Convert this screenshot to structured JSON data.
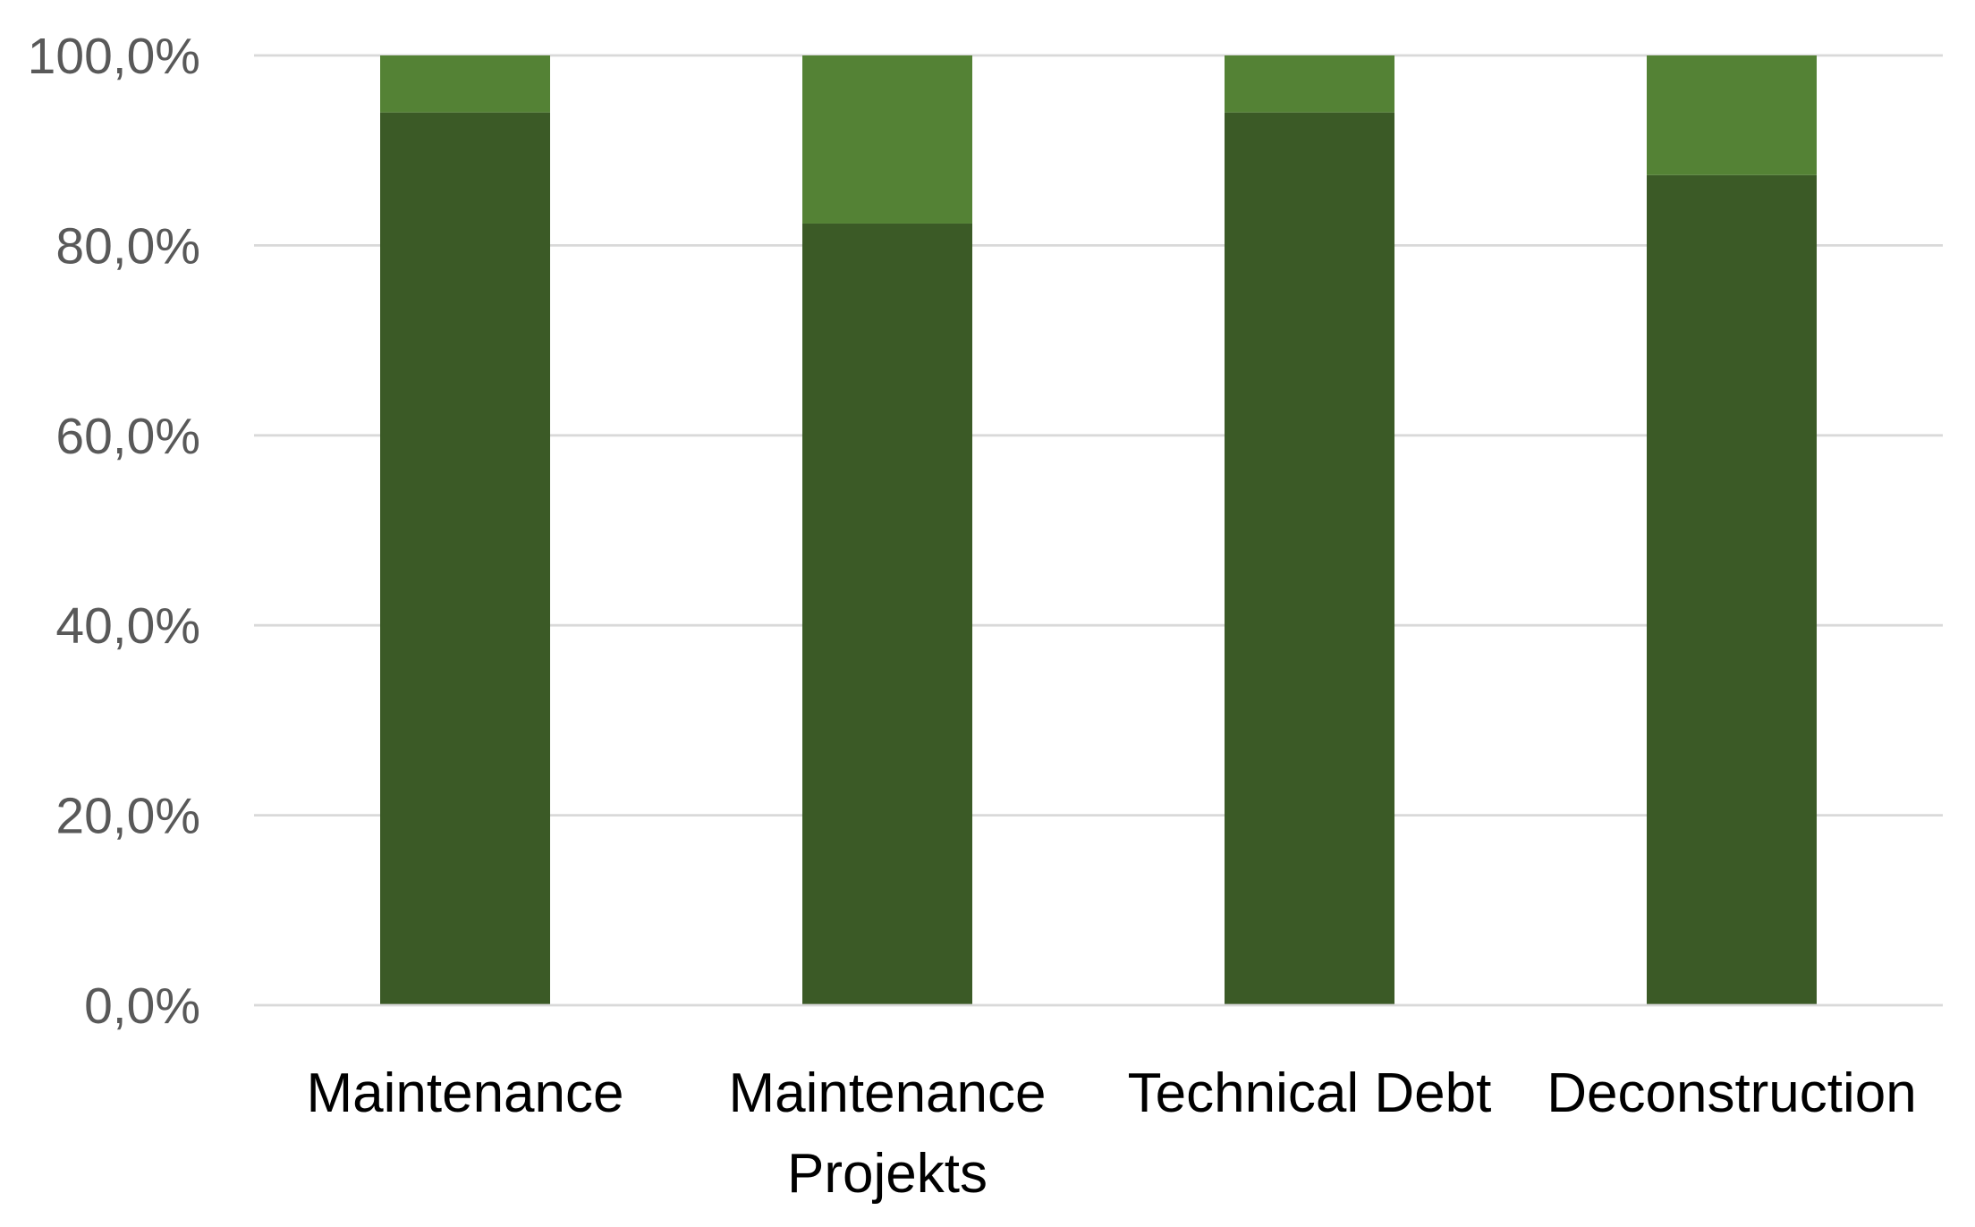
{
  "chart_data": {
    "type": "bar",
    "stacked": true,
    "categories": [
      [
        "Maintenance"
      ],
      [
        "Maintenance",
        "Projekts"
      ],
      [
        "Technical Debt"
      ],
      [
        "Deconstruction"
      ]
    ],
    "series": [
      {
        "color": "#3b5a26",
        "values": [
          94.0,
          82.3,
          94.0,
          87.4
        ]
      },
      {
        "color": "#548235",
        "values": [
          6.0,
          17.7,
          6.0,
          12.6
        ]
      }
    ],
    "ylim": [
      0,
      100
    ],
    "yticks": [
      {
        "value": 0,
        "label": "0,0%"
      },
      {
        "value": 20,
        "label": "20,0%"
      },
      {
        "value": 40,
        "label": "40,0%"
      },
      {
        "value": 60,
        "label": "60,0%"
      },
      {
        "value": 80,
        "label": "80,0%"
      },
      {
        "value": 100,
        "label": "100,0%"
      }
    ],
    "grid": true,
    "legend": "none"
  }
}
